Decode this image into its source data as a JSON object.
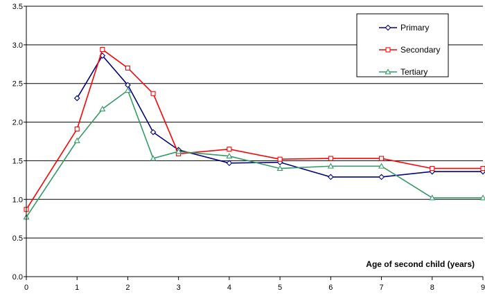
{
  "chart_data": {
    "type": "line",
    "title": "",
    "xlabel": "",
    "ylabel": "",
    "annotation": "Age of second child (years)",
    "xlim": [
      0,
      9
    ],
    "ylim": [
      0.0,
      3.5
    ],
    "x_ticks": [
      "0",
      "1",
      "2",
      "3",
      "4",
      "5",
      "6",
      "7",
      "8",
      "9"
    ],
    "y_ticks": [
      "0.0",
      "0.5",
      "1.0",
      "1.5",
      "2.0",
      "2.5",
      "3.0",
      "3.5"
    ],
    "grid": "horizontal",
    "legend": "top-right",
    "series": [
      {
        "name": "Primary",
        "color": "#000080",
        "marker": "diamond",
        "points": [
          [
            1,
            2.31
          ],
          [
            1.5,
            2.86
          ],
          [
            2,
            2.48
          ],
          [
            2.5,
            1.87
          ],
          [
            3,
            1.64
          ],
          [
            4,
            1.47
          ],
          [
            5,
            1.48
          ],
          [
            6,
            1.29
          ],
          [
            7,
            1.29
          ],
          [
            8,
            1.36
          ],
          [
            9,
            1.36
          ]
        ]
      },
      {
        "name": "Secondary",
        "color": "#ff0000",
        "marker": "square",
        "points": [
          [
            0,
            0.87
          ],
          [
            1,
            1.91
          ],
          [
            1.5,
            2.94
          ],
          [
            2,
            2.7
          ],
          [
            2.5,
            2.37
          ],
          [
            3,
            1.59
          ],
          [
            4,
            1.65
          ],
          [
            5,
            1.52
          ],
          [
            6,
            1.53
          ],
          [
            7,
            1.53
          ],
          [
            8,
            1.4
          ],
          [
            9,
            1.4
          ]
        ]
      },
      {
        "name": "Tertiary",
        "color": "#339966",
        "marker": "triangle",
        "points": [
          [
            0,
            0.77
          ],
          [
            1,
            1.76
          ],
          [
            1.5,
            2.17
          ],
          [
            2,
            2.41
          ],
          [
            2.5,
            1.53
          ],
          [
            3,
            1.62
          ],
          [
            4,
            1.56
          ],
          [
            5,
            1.4
          ],
          [
            6,
            1.43
          ],
          [
            7,
            1.43
          ],
          [
            8,
            1.02
          ],
          [
            9,
            1.02
          ]
        ]
      }
    ]
  }
}
